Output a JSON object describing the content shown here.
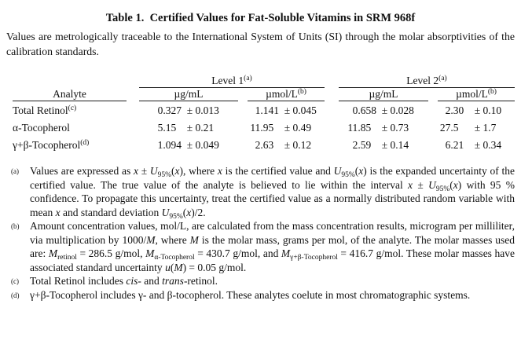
{
  "page": {
    "title": "Table 1.  Certified Values for Fat-Soluble Vitamins in SRM 968f",
    "intro": "Values are metrologically traceable to the International System of Units (SI) through the molar absorptivities of the calibration standards."
  },
  "table": {
    "plus_minus": "±",
    "group_headers": {
      "level1": [
        {
          "t": "Level 1"
        },
        {
          "t": "(a)",
          "s": "sup"
        }
      ],
      "level2": [
        {
          "t": "Level 2"
        },
        {
          "t": "(a)",
          "s": "sup"
        }
      ]
    },
    "columns": {
      "analyte": "Analyte",
      "ug_ml": "µg/mL",
      "umol_l": [
        {
          "t": "µmol/L"
        },
        {
          "t": "(b)",
          "s": "sup"
        }
      ]
    },
    "rows": [
      {
        "analyte": [
          {
            "t": "Total Retinol"
          },
          {
            "t": "(c)",
            "s": "sup"
          }
        ],
        "l1_ug": {
          "v": "0.327",
          "u": "0.013"
        },
        "l1_umol": {
          "v": "1.141",
          "u": "0.045"
        },
        "l2_ug": {
          "v": "0.658",
          "u": "0.028"
        },
        "l2_umol": {
          "v": "2.30",
          "u": "0.10"
        }
      },
      {
        "analyte": [
          {
            "t": "α-Tocopherol"
          }
        ],
        "l1_ug": {
          "v": "5.15",
          "u": "0.21"
        },
        "l1_umol": {
          "v": "11.95",
          "u": "0.49"
        },
        "l2_ug": {
          "v": "11.85",
          "u": "0.73"
        },
        "l2_umol": {
          "v": "27.5",
          "u": "1.7"
        }
      },
      {
        "analyte": [
          {
            "t": "γ+β-Tocopherol"
          },
          {
            "t": "(d)",
            "s": "sup"
          }
        ],
        "l1_ug": {
          "v": "1.094",
          "u": "0.049"
        },
        "l1_umol": {
          "v": "2.63",
          "u": "0.12"
        },
        "l2_ug": {
          "v": "2.59",
          "u": "0.14"
        },
        "l2_umol": {
          "v": "6.21",
          "u": "0.34"
        }
      }
    ]
  },
  "footnotes": [
    {
      "marker": "(a)",
      "segments": [
        {
          "t": "Values are expressed as "
        },
        {
          "t": "x",
          "s": "i"
        },
        {
          "t": " ± "
        },
        {
          "t": "U",
          "s": "i"
        },
        {
          "t": "95%",
          "s": "sub"
        },
        {
          "t": "("
        },
        {
          "t": "x",
          "s": "i"
        },
        {
          "t": "), where "
        },
        {
          "t": "x",
          "s": "i"
        },
        {
          "t": " is the certified value and "
        },
        {
          "t": "U",
          "s": "i"
        },
        {
          "t": "95%",
          "s": "sub"
        },
        {
          "t": "("
        },
        {
          "t": "x",
          "s": "i"
        },
        {
          "t": ") is the expanded uncertainty of the certified value.  The true value of the analyte is believed to lie within the interval "
        },
        {
          "t": "x",
          "s": "i"
        },
        {
          "t": " ± "
        },
        {
          "t": "U",
          "s": "i"
        },
        {
          "t": "95%",
          "s": "sub"
        },
        {
          "t": "("
        },
        {
          "t": "x",
          "s": "i"
        },
        {
          "t": ") with 95 % confidence.  To propagate this uncertainty, treat the certified value as a normally distributed random variable with mean "
        },
        {
          "t": "x",
          "s": "i"
        },
        {
          "t": " and standard deviation "
        },
        {
          "t": "U",
          "s": "i"
        },
        {
          "t": "95%",
          "s": "sub"
        },
        {
          "t": "("
        },
        {
          "t": "x",
          "s": "i"
        },
        {
          "t": ")/2."
        }
      ]
    },
    {
      "marker": "(b)",
      "segments": [
        {
          "t": "Amount concentration values, mol/L, are calculated from the mass concentration results, microgram per milliliter, via multiplication by 1000/"
        },
        {
          "t": "M",
          "s": "i"
        },
        {
          "t": ", where "
        },
        {
          "t": "M",
          "s": "i"
        },
        {
          "t": " is the molar mass, grams per mol, of the analyte.  The molar masses used are:  "
        },
        {
          "t": "M",
          "s": "i"
        },
        {
          "t": "retinol",
          "s": "sub"
        },
        {
          "t": " = 286.5 g/mol,  "
        },
        {
          "t": "M",
          "s": "i"
        },
        {
          "t": "α-Tocopherol",
          "s": "sub"
        },
        {
          "t": " = 430.7 g/mol, and "
        },
        {
          "t": "M",
          "s": "i"
        },
        {
          "t": "γ+β-Tocopherol",
          "s": "sub"
        },
        {
          "t": " = 416.7 g/mol.  These molar masses have associated standard uncertainty "
        },
        {
          "t": "u",
          "s": "i"
        },
        {
          "t": "("
        },
        {
          "t": "M",
          "s": "i"
        },
        {
          "t": ") = 0.05 g/mol."
        }
      ]
    },
    {
      "marker": "(c)",
      "segments": [
        {
          "t": "Total Retinol includes "
        },
        {
          "t": "cis",
          "s": "i"
        },
        {
          "t": "- and "
        },
        {
          "t": "trans",
          "s": "i"
        },
        {
          "t": "-retinol."
        }
      ]
    },
    {
      "marker": "(d)",
      "segments": [
        {
          "t": "γ+β-Tocopherol includes γ- and β-tocopherol.  These analytes coelute in most chromatographic systems."
        }
      ]
    }
  ]
}
